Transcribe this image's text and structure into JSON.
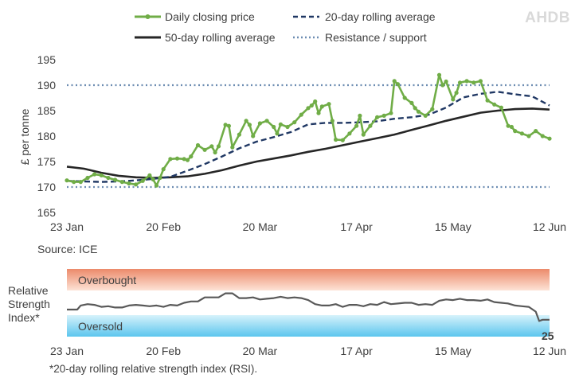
{
  "logo": {
    "text": "AHDB"
  },
  "colors": {
    "closing": "#70ad47",
    "ma20": "#203864",
    "ma50": "#262626",
    "resistance": "#6d8db2",
    "rsi": "#595959",
    "overbought_top": "#ec8a6a",
    "overbought_bottom": "#fde3d6",
    "oversold_top": "#d6f2fb",
    "oversold_bottom": "#5cc6ee"
  },
  "chart_data": [
    {
      "type": "line",
      "xlabel": "",
      "ylabel": "£ per tonne",
      "ylim": [
        165,
        195
      ],
      "yticks": [
        165,
        170,
        175,
        180,
        185,
        190,
        195
      ],
      "xticks": [
        "23 Jan",
        "20 Feb",
        "20 Mar",
        "17 Apr",
        "15 May",
        "12 Jun"
      ],
      "x_days": 140,
      "xtick_days": [
        0,
        28,
        56,
        84,
        112,
        140
      ],
      "grid": false,
      "legend_position": "top",
      "series": [
        {
          "name": "Daily closing price",
          "style": "line-with-markers",
          "x": [
            0,
            2,
            4,
            6,
            8,
            10,
            12,
            14,
            16,
            18,
            20,
            22,
            24,
            25,
            26,
            27,
            28,
            30,
            32,
            34,
            35,
            36,
            38,
            40,
            42,
            43,
            44,
            46,
            47,
            48,
            50,
            52,
            53,
            54,
            56,
            58,
            60,
            61,
            62,
            64,
            66,
            68,
            70,
            71,
            72,
            73,
            74,
            76,
            77,
            78,
            80,
            82,
            84,
            85,
            86,
            88,
            90,
            92,
            94,
            95,
            96,
            98,
            100,
            101,
            102,
            104,
            106,
            108,
            109,
            110,
            112,
            113,
            114,
            116,
            118,
            120,
            122,
            124,
            126,
            128,
            129,
            130,
            132,
            134,
            136,
            138,
            140
          ],
          "y": [
            171.3,
            171.0,
            171.0,
            171.8,
            172.5,
            172.3,
            171.8,
            171.4,
            171.0,
            170.7,
            170.5,
            171.2,
            172.3,
            171.5,
            170.3,
            171.8,
            173.5,
            175.5,
            175.6,
            175.5,
            175.3,
            176.0,
            178.2,
            177.3,
            178.0,
            176.8,
            178.0,
            182.2,
            182.0,
            177.8,
            180.3,
            183.0,
            182.2,
            180.0,
            182.5,
            183.0,
            181.8,
            180.5,
            182.3,
            181.8,
            182.7,
            184.2,
            185.5,
            186.0,
            186.8,
            184.5,
            185.8,
            186.3,
            183.0,
            179.3,
            179.2,
            180.5,
            182.0,
            184.0,
            180.3,
            182.0,
            183.7,
            184.0,
            184.5,
            190.8,
            190.2,
            187.5,
            186.5,
            185.5,
            184.8,
            184.0,
            185.3,
            192.0,
            190.0,
            190.7,
            187.2,
            188.5,
            190.5,
            190.8,
            190.5,
            190.8,
            187.0,
            186.2,
            185.6,
            182.0,
            181.8,
            181.0,
            180.5,
            180.0,
            181.0,
            180.0,
            179.5
          ]
        },
        {
          "name": "20-day rolling average",
          "style": "dashed",
          "x": [
            0,
            5,
            10,
            15,
            20,
            25,
            30,
            35,
            40,
            45,
            50,
            55,
            60,
            65,
            70,
            75,
            80,
            85,
            90,
            95,
            100,
            105,
            110,
            115,
            120,
            125,
            130,
            135,
            140
          ],
          "y": [
            171.2,
            171.1,
            171.0,
            171.1,
            171.3,
            171.6,
            172.0,
            173.2,
            174.5,
            176.0,
            177.6,
            178.9,
            179.8,
            180.8,
            182.3,
            182.6,
            182.6,
            182.7,
            182.9,
            183.4,
            183.7,
            184.2,
            185.6,
            187.6,
            188.3,
            188.7,
            188.2,
            187.8,
            186.0
          ]
        },
        {
          "name": "50-day rolling average",
          "style": "solid",
          "x": [
            0,
            5,
            10,
            15,
            20,
            25,
            30,
            35,
            40,
            45,
            50,
            55,
            60,
            65,
            70,
            75,
            80,
            85,
            90,
            95,
            100,
            105,
            110,
            115,
            120,
            125,
            130,
            135,
            140
          ],
          "y": [
            174.0,
            173.6,
            172.8,
            172.2,
            171.9,
            171.8,
            171.9,
            172.1,
            172.6,
            173.3,
            174.2,
            175.0,
            175.6,
            176.2,
            176.9,
            177.5,
            178.2,
            178.9,
            179.6,
            180.3,
            181.2,
            182.1,
            183.0,
            183.8,
            184.6,
            185.0,
            185.3,
            185.4,
            185.2
          ]
        },
        {
          "name": "Resistance / support",
          "style": "dotted",
          "levels": [
            190,
            170
          ]
        }
      ]
    },
    {
      "type": "line",
      "ylabel": "Relative Strength Index*",
      "ylim": [
        0,
        100
      ],
      "xticks": [
        "23 Jan",
        "20 Feb",
        "20 Mar",
        "17 Apr",
        "15 May",
        "12 Jun"
      ],
      "bands": [
        {
          "label": "Overbought",
          "range": [
            70,
            100
          ]
        },
        {
          "label": "Oversold",
          "range": [
            0,
            30
          ]
        }
      ],
      "last_value_label": "25",
      "series": [
        {
          "name": "RSI",
          "x": [
            0,
            3,
            4,
            6,
            8,
            10,
            12,
            14,
            16,
            18,
            20,
            22,
            24,
            26,
            28,
            30,
            32,
            34,
            36,
            38,
            40,
            42,
            44,
            46,
            48,
            50,
            52,
            54,
            56,
            58,
            60,
            62,
            64,
            66,
            68,
            70,
            72,
            74,
            76,
            78,
            80,
            82,
            84,
            86,
            88,
            90,
            92,
            94,
            96,
            98,
            100,
            102,
            104,
            106,
            108,
            110,
            112,
            114,
            116,
            118,
            120,
            122,
            124,
            126,
            128,
            130,
            132,
            134,
            136,
            137,
            138,
            140
          ],
          "y": [
            40,
            40,
            46,
            48,
            47,
            44,
            45,
            43,
            43,
            46,
            47,
            46,
            45,
            46,
            44,
            47,
            46,
            50,
            52,
            52,
            58,
            58,
            58,
            64,
            64,
            57,
            57,
            58,
            55,
            56,
            57,
            59,
            57,
            58,
            57,
            54,
            48,
            46,
            46,
            48,
            44,
            47,
            47,
            45,
            48,
            47,
            51,
            48,
            49,
            50,
            50,
            47,
            48,
            47,
            53,
            55,
            54,
            56,
            54,
            54,
            53,
            55,
            51,
            50,
            49,
            46,
            45,
            44,
            37,
            23,
            25,
            25
          ]
        }
      ]
    }
  ],
  "source": "Source: ICE",
  "footnote": "*20-day rolling relative strength index (RSI)."
}
